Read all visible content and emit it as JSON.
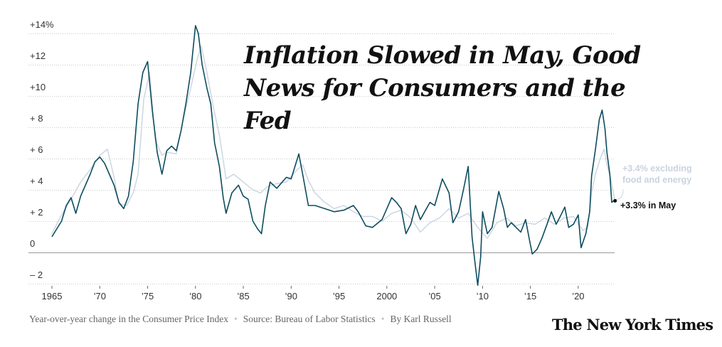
{
  "title": "Inflation Slowed in May, Good News for Consumers and the Fed",
  "footer": {
    "description": "Year-over-year change in the Consumer Price Index",
    "source": "Source: Bureau of Labor Statistics",
    "byline": "By Karl Russell",
    "logo": "The New York Times"
  },
  "colors": {
    "headline_series": "#0d4d5e",
    "core_series": "#c9d4e0",
    "zero_line": "#9a9a9a",
    "grid": "#c8c8c8"
  },
  "chart_data": {
    "type": "line",
    "title": "Inflation Slowed in May, Good News for Consumers and the Fed",
    "xlabel": "",
    "ylabel": "",
    "xlim": [
      1965,
      2023.8
    ],
    "ylim": [
      -3,
      15
    ],
    "y_ticks": [
      {
        "value": 14,
        "label": "+14%"
      },
      {
        "value": 12,
        "label": "+12"
      },
      {
        "value": 10,
        "label": "+10"
      },
      {
        "value": 8,
        "label": "+ 8"
      },
      {
        "value": 6,
        "label": "+ 6"
      },
      {
        "value": 4,
        "label": "+ 4"
      },
      {
        "value": 2,
        "label": "+ 2"
      },
      {
        "value": 0,
        "label": "0"
      },
      {
        "value": -2,
        "label": "– 2"
      }
    ],
    "x_ticks": [
      {
        "value": 1965,
        "label": "1965"
      },
      {
        "value": 1970,
        "label": "’70"
      },
      {
        "value": 1975,
        "label": "’75"
      },
      {
        "value": 1980,
        "label": "’80"
      },
      {
        "value": 1985,
        "label": "’85"
      },
      {
        "value": 1990,
        "label": "’90"
      },
      {
        "value": 1995,
        "label": "’95"
      },
      {
        "value": 2000,
        "label": "2000"
      },
      {
        "value": 2005,
        "label": "’05"
      },
      {
        "value": 2010,
        "label": "’10"
      },
      {
        "value": 2015,
        "label": "’15"
      },
      {
        "value": 2020,
        "label": "’20"
      }
    ],
    "grid": true,
    "series": [
      {
        "label": "+3.4% excluding food and energy",
        "color": "#c9d4e0",
        "points": [
          [
            1965.0,
            1.2
          ],
          [
            1966.0,
            2.4
          ],
          [
            1967.0,
            3.4
          ],
          [
            1968.0,
            4.5
          ],
          [
            1969.0,
            5.3
          ],
          [
            1970.0,
            6.2
          ],
          [
            1970.8,
            6.6
          ],
          [
            1971.5,
            4.8
          ],
          [
            1972.0,
            3.1
          ],
          [
            1972.8,
            3.0
          ],
          [
            1973.5,
            3.8
          ],
          [
            1974.0,
            5.0
          ],
          [
            1974.6,
            9.8
          ],
          [
            1975.2,
            11.5
          ],
          [
            1975.8,
            7.2
          ],
          [
            1976.5,
            6.2
          ],
          [
            1977.0,
            6.4
          ],
          [
            1978.0,
            6.3
          ],
          [
            1978.8,
            8.7
          ],
          [
            1979.5,
            10.5
          ],
          [
            1980.2,
            12.4
          ],
          [
            1980.6,
            13.2
          ],
          [
            1981.2,
            11.5
          ],
          [
            1981.8,
            9.5
          ],
          [
            1982.5,
            7.5
          ],
          [
            1983.2,
            4.7
          ],
          [
            1984.0,
            5.0
          ],
          [
            1985.0,
            4.5
          ],
          [
            1986.0,
            4.0
          ],
          [
            1986.8,
            3.8
          ],
          [
            1987.5,
            4.2
          ],
          [
            1988.5,
            4.4
          ],
          [
            1989.5,
            4.5
          ],
          [
            1990.5,
            5.2
          ],
          [
            1991.2,
            5.6
          ],
          [
            1991.8,
            4.6
          ],
          [
            1992.5,
            3.8
          ],
          [
            1993.5,
            3.2
          ],
          [
            1994.5,
            2.8
          ],
          [
            1995.5,
            3.0
          ],
          [
            1996.5,
            2.6
          ],
          [
            1997.5,
            2.3
          ],
          [
            1998.5,
            2.3
          ],
          [
            1999.5,
            2.0
          ],
          [
            2000.5,
            2.5
          ],
          [
            2001.5,
            2.7
          ],
          [
            2002.5,
            2.2
          ],
          [
            2003.5,
            1.3
          ],
          [
            2004.5,
            1.9
          ],
          [
            2005.5,
            2.2
          ],
          [
            2006.5,
            2.8
          ],
          [
            2007.5,
            2.2
          ],
          [
            2008.5,
            2.5
          ],
          [
            2009.5,
            1.6
          ],
          [
            2010.5,
            0.9
          ],
          [
            2011.5,
            1.9
          ],
          [
            2012.5,
            2.2
          ],
          [
            2013.5,
            1.7
          ],
          [
            2014.5,
            1.9
          ],
          [
            2015.5,
            1.8
          ],
          [
            2016.5,
            2.2
          ],
          [
            2017.5,
            1.8
          ],
          [
            2018.5,
            2.2
          ],
          [
            2019.5,
            2.3
          ],
          [
            2020.5,
            1.4
          ],
          [
            2021.0,
            1.6
          ],
          [
            2021.4,
            3.8
          ],
          [
            2021.8,
            5.0
          ],
          [
            2022.3,
            6.0
          ],
          [
            2022.7,
            6.6
          ],
          [
            2023.0,
            5.6
          ],
          [
            2023.4,
            4.7
          ],
          [
            2023.8,
            3.4
          ]
        ]
      },
      {
        "label": "+3.3% in May",
        "color": "#0d4d5e",
        "points": [
          [
            1965.0,
            1.0
          ],
          [
            1965.5,
            1.5
          ],
          [
            1966.0,
            2.0
          ],
          [
            1966.5,
            3.0
          ],
          [
            1967.0,
            3.5
          ],
          [
            1967.5,
            2.5
          ],
          [
            1968.0,
            3.6
          ],
          [
            1968.5,
            4.3
          ],
          [
            1969.0,
            5.0
          ],
          [
            1969.5,
            5.8
          ],
          [
            1970.0,
            6.1
          ],
          [
            1970.5,
            5.7
          ],
          [
            1971.0,
            5.0
          ],
          [
            1971.5,
            4.3
          ],
          [
            1972.0,
            3.2
          ],
          [
            1972.5,
            2.8
          ],
          [
            1973.0,
            3.6
          ],
          [
            1973.5,
            5.8
          ],
          [
            1974.0,
            9.5
          ],
          [
            1974.5,
            11.5
          ],
          [
            1975.0,
            12.2
          ],
          [
            1975.5,
            9.0
          ],
          [
            1976.0,
            6.4
          ],
          [
            1976.5,
            5.0
          ],
          [
            1977.0,
            6.5
          ],
          [
            1977.5,
            6.8
          ],
          [
            1978.0,
            6.5
          ],
          [
            1978.5,
            7.8
          ],
          [
            1979.0,
            9.5
          ],
          [
            1979.5,
            11.5
          ],
          [
            1980.0,
            14.5
          ],
          [
            1980.3,
            14.0
          ],
          [
            1980.7,
            12.0
          ],
          [
            1981.2,
            10.5
          ],
          [
            1981.6,
            9.5
          ],
          [
            1982.0,
            7.0
          ],
          [
            1982.5,
            5.5
          ],
          [
            1982.9,
            3.5
          ],
          [
            1983.2,
            2.5
          ],
          [
            1983.8,
            3.8
          ],
          [
            1984.5,
            4.3
          ],
          [
            1985.0,
            3.6
          ],
          [
            1985.5,
            3.4
          ],
          [
            1986.0,
            2.0
          ],
          [
            1986.5,
            1.5
          ],
          [
            1986.9,
            1.2
          ],
          [
            1987.3,
            3.0
          ],
          [
            1987.8,
            4.5
          ],
          [
            1988.5,
            4.1
          ],
          [
            1989.5,
            4.8
          ],
          [
            1990.0,
            4.7
          ],
          [
            1990.8,
            6.3
          ],
          [
            1991.2,
            5.0
          ],
          [
            1991.8,
            3.0
          ],
          [
            1992.5,
            3.0
          ],
          [
            1993.5,
            2.8
          ],
          [
            1994.5,
            2.6
          ],
          [
            1995.5,
            2.7
          ],
          [
            1996.5,
            3.0
          ],
          [
            1997.0,
            2.6
          ],
          [
            1997.8,
            1.7
          ],
          [
            1998.5,
            1.6
          ],
          [
            1999.5,
            2.1
          ],
          [
            2000.0,
            2.8
          ],
          [
            2000.5,
            3.5
          ],
          [
            2001.0,
            3.2
          ],
          [
            2001.5,
            2.8
          ],
          [
            2002.0,
            1.2
          ],
          [
            2002.5,
            1.8
          ],
          [
            2003.0,
            3.0
          ],
          [
            2003.5,
            2.1
          ],
          [
            2004.5,
            3.2
          ],
          [
            2005.0,
            3.0
          ],
          [
            2005.8,
            4.7
          ],
          [
            2006.5,
            3.8
          ],
          [
            2006.9,
            1.9
          ],
          [
            2007.5,
            2.6
          ],
          [
            2008.0,
            4.0
          ],
          [
            2008.5,
            5.5
          ],
          [
            2008.9,
            1.0
          ],
          [
            2009.2,
            -0.6
          ],
          [
            2009.5,
            -2.1
          ],
          [
            2009.8,
            -0.3
          ],
          [
            2010.0,
            2.6
          ],
          [
            2010.5,
            1.2
          ],
          [
            2011.0,
            1.6
          ],
          [
            2011.7,
            3.9
          ],
          [
            2012.2,
            2.8
          ],
          [
            2012.6,
            1.6
          ],
          [
            2013.0,
            1.9
          ],
          [
            2013.5,
            1.6
          ],
          [
            2014.0,
            1.3
          ],
          [
            2014.5,
            2.1
          ],
          [
            2014.9,
            0.8
          ],
          [
            2015.2,
            -0.1
          ],
          [
            2015.7,
            0.2
          ],
          [
            2016.2,
            0.9
          ],
          [
            2016.8,
            1.9
          ],
          [
            2017.2,
            2.6
          ],
          [
            2017.7,
            1.8
          ],
          [
            2018.2,
            2.4
          ],
          [
            2018.6,
            2.9
          ],
          [
            2019.0,
            1.6
          ],
          [
            2019.5,
            1.8
          ],
          [
            2020.0,
            2.4
          ],
          [
            2020.3,
            0.3
          ],
          [
            2020.8,
            1.2
          ],
          [
            2021.2,
            2.6
          ],
          [
            2021.4,
            4.9
          ],
          [
            2021.8,
            6.6
          ],
          [
            2022.2,
            8.5
          ],
          [
            2022.5,
            9.1
          ],
          [
            2022.8,
            7.9
          ],
          [
            2023.0,
            6.4
          ],
          [
            2023.3,
            5.0
          ],
          [
            2023.5,
            3.2
          ],
          [
            2023.7,
            3.3
          ]
        ]
      }
    ],
    "annotations": [
      {
        "text": "+3.4% excluding",
        "series": 0
      },
      {
        "text": "food and energy",
        "series": 0
      },
      {
        "text": "+3.3% in May",
        "series": 1
      }
    ]
  }
}
